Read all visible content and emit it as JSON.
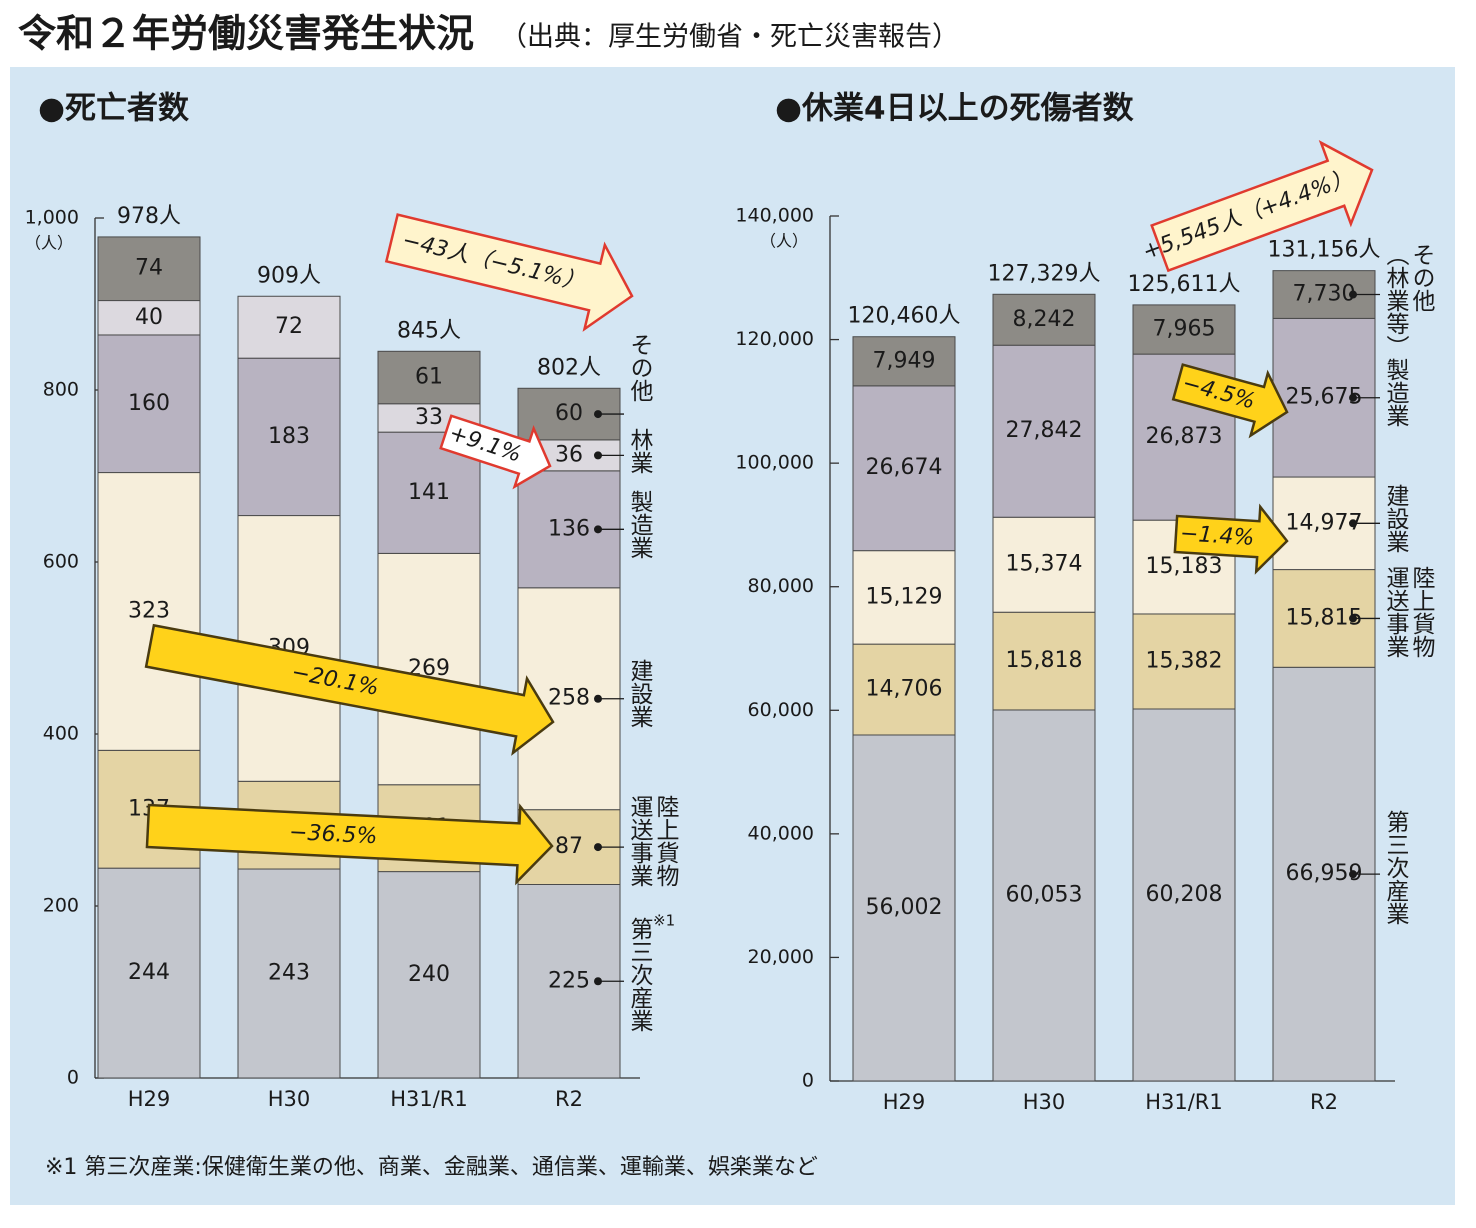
{
  "title": "令和２年労働災害発生状況",
  "subtitle": "（出典：厚生労働省・死亡災害報告）",
  "footnote": "※1 第三次産業:保健衛生業の他、商業、金融業、通信業、運輸業、娯楽業など",
  "chart_data": [
    {
      "type": "bar",
      "stacked": true,
      "title": "●死亡者数",
      "unit_label": "（人）",
      "categories": [
        "H29",
        "H30",
        "H31/R1",
        "R2"
      ],
      "series": [
        {
          "name": "第三次産業",
          "note": "※1",
          "color": "#c3c6cd",
          "values": [
            244,
            243,
            240,
            225
          ]
        },
        {
          "name": "陸上貨物運送事業",
          "color": "#e4d4a4",
          "values": [
            137,
            102,
            101,
            87
          ]
        },
        {
          "name": "建設業",
          "color": "#f6eedb",
          "values": [
            323,
            309,
            269,
            258
          ]
        },
        {
          "name": "製造業",
          "color": "#b8b3c1",
          "values": [
            160,
            183,
            141,
            136
          ]
        },
        {
          "name": "林業",
          "color": "#dcd9df",
          "values": [
            40,
            72,
            33,
            36
          ]
        },
        {
          "name": "その他",
          "color": "#8d8b86",
          "values": [
            74,
            null,
            61,
            60
          ]
        }
      ],
      "totals": [
        978,
        909,
        845,
        802
      ],
      "total_labels": [
        "978人",
        "909人",
        "845人",
        "802人"
      ],
      "ylim": [
        0,
        1000
      ],
      "yticks": [
        0,
        200,
        400,
        600,
        800,
        {
          "value": 1000,
          "label": "1,000"
        }
      ],
      "annotations": [
        {
          "text": "−43人（−5.1%）",
          "fill": "#fff4cc",
          "stroke": "#e03a2f"
        },
        {
          "text": "+9.1%",
          "fill": "#ffffff",
          "stroke": "#e03a2f"
        },
        {
          "text": "−20.1%",
          "fill": "#ffd21a",
          "stroke": "#4a3b10"
        },
        {
          "text": "−36.5%",
          "fill": "#ffd21a",
          "stroke": "#4a3b10"
        }
      ]
    },
    {
      "type": "bar",
      "stacked": true,
      "title": "●休業4日以上の死傷者数",
      "unit_label": "（人）",
      "categories": [
        "H29",
        "H30",
        "H31/R1",
        "R2"
      ],
      "series": [
        {
          "name": "第三次産業",
          "color": "#c3c6cd",
          "values": [
            56002,
            60053,
            60208,
            66959
          ],
          "value_labels": [
            "56,002",
            "60,053",
            "60,208",
            "66,959"
          ]
        },
        {
          "name": "陸上貨物運送事業",
          "color": "#e4d4a4",
          "values": [
            14706,
            15818,
            15382,
            15815
          ],
          "value_labels": [
            "14,706",
            "15,818",
            "15,382",
            "15,815"
          ]
        },
        {
          "name": "建設業",
          "color": "#f6eedb",
          "values": [
            15129,
            15374,
            15183,
            14977
          ],
          "value_labels": [
            "15,129",
            "15,374",
            "15,183",
            "14,977"
          ]
        },
        {
          "name": "製造業",
          "color": "#b8b3c1",
          "values": [
            26674,
            27842,
            26873,
            25675
          ],
          "value_labels": [
            "26,674",
            "27,842",
            "26,873",
            "25,675"
          ]
        },
        {
          "name": "その他（林業等）",
          "color": "#8d8b86",
          "values": [
            7949,
            8242,
            7965,
            7730
          ],
          "value_labels": [
            "7,949",
            "8,242",
            "7,965",
            "7,730"
          ]
        }
      ],
      "totals": [
        120460,
        127329,
        125611,
        131156
      ],
      "total_labels": [
        "120,460人",
        "127,329人",
        "125,611人",
        "131,156人"
      ],
      "ylim": [
        0,
        140000
      ],
      "yticks": [
        0,
        {
          "value": 20000,
          "label": "20,000"
        },
        {
          "value": 40000,
          "label": "40,000"
        },
        {
          "value": 60000,
          "label": "60,000"
        },
        {
          "value": 80000,
          "label": "80,000"
        },
        {
          "value": 100000,
          "label": "100,000"
        },
        {
          "value": 120000,
          "label": "120,000"
        },
        {
          "value": 140000,
          "label": "140,000"
        }
      ],
      "annotations": [
        {
          "text": "+5,545人（+4.4%）",
          "fill": "#fff4cc",
          "stroke": "#e03a2f"
        },
        {
          "text": "−4.5%",
          "fill": "#ffd21a",
          "stroke": "#4a3b10"
        },
        {
          "text": "−1.4%",
          "fill": "#ffd21a",
          "stroke": "#4a3b10"
        }
      ]
    }
  ]
}
